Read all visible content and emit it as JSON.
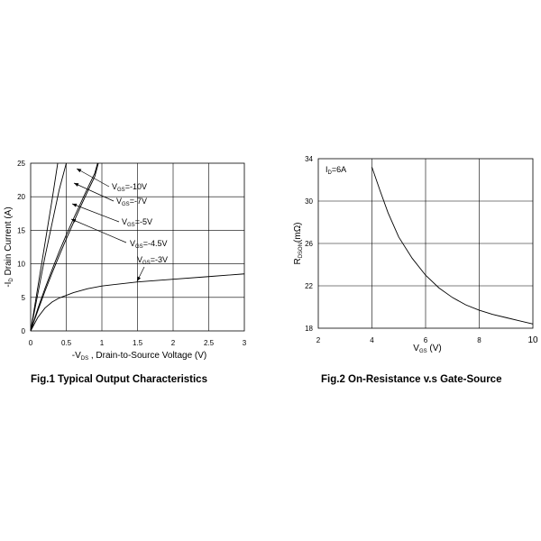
{
  "chart_data": [
    {
      "type": "line",
      "caption": "Fig.1 Typical Output Characteristics",
      "xlabel": {
        "prefix": "-V",
        "sub": "DS",
        "rest": " , Drain-to-Source Voltage (V)"
      },
      "ylabel": {
        "prefix": "-I",
        "sub": "D",
        "rest": " Drain Current (A)"
      },
      "xlim": [
        0,
        3
      ],
      "ylim": [
        0,
        25
      ],
      "xticks": [
        0,
        0.5,
        1,
        1.5,
        2,
        2.5,
        3
      ],
      "xtick_labels": [
        "0",
        "0.5",
        "1",
        "1.5",
        "2",
        "2.5",
        "3"
      ],
      "yticks": [
        0,
        5,
        10,
        15,
        20,
        25
      ],
      "ytick_labels": [
        "0",
        "5",
        "10",
        "15",
        "20",
        "25"
      ],
      "grid": true,
      "series": [
        {
          "name": {
            "prefix": "V",
            "sub": "GS",
            "rest": "=-10V"
          },
          "x": [
            0,
            0.1,
            0.2,
            0.3,
            0.38
          ],
          "y": [
            0,
            6.5,
            13,
            19.5,
            25
          ]
        },
        {
          "name": {
            "prefix": "V",
            "sub": "GS",
            "rest": "=-7V"
          },
          "x": [
            0,
            0.1,
            0.2,
            0.3,
            0.4,
            0.5
          ],
          "y": [
            0,
            5.5,
            11,
            16,
            21,
            25
          ]
        },
        {
          "name": {
            "prefix": "V",
            "sub": "GS",
            "rest": "=-5V"
          },
          "x": [
            0,
            0.1,
            0.2,
            0.3,
            0.4,
            0.5,
            0.6,
            0.7,
            0.8,
            0.9,
            0.94
          ],
          "y": [
            0,
            3.3,
            6.3,
            9.1,
            11.8,
            14.3,
            16.7,
            19.0,
            21.3,
            23.5,
            25
          ]
        },
        {
          "name": {
            "prefix": "V",
            "sub": "GS",
            "rest": "=-4.5V"
          },
          "x": [
            0,
            0.1,
            0.2,
            0.3,
            0.4,
            0.5,
            0.6,
            0.7,
            0.8,
            0.9,
            0.95
          ],
          "y": [
            0,
            3.0,
            5.9,
            8.6,
            11.2,
            13.7,
            16.1,
            18.5,
            20.8,
            23.0,
            25
          ]
        },
        {
          "name": {
            "prefix": "V",
            "sub": "GS",
            "rest": "=-3V"
          },
          "x": [
            0,
            0.1,
            0.2,
            0.3,
            0.4,
            0.5,
            0.6,
            0.8,
            1.0,
            1.5,
            2.0,
            2.5,
            3.0
          ],
          "y": [
            0,
            2.0,
            3.4,
            4.3,
            4.9,
            5.3,
            5.7,
            6.3,
            6.7,
            7.3,
            7.7,
            8.1,
            8.5
          ]
        }
      ]
    },
    {
      "type": "line",
      "caption": "Fig.2 On-Resistance v.s Gate-Source",
      "annotation": {
        "prefix": "I",
        "sub": "D",
        "rest": "=6A"
      },
      "xlabel": {
        "prefix": "V",
        "sub": "GS",
        "rest": " (V)"
      },
      "ylabel": {
        "prefix": "R",
        "sub": "DSON",
        "rest": "(mΩ)"
      },
      "xlim": [
        2,
        10
      ],
      "ylim": [
        18,
        34
      ],
      "xticks": [
        2,
        4,
        6,
        8,
        10
      ],
      "xtick_labels": [
        "2",
        "4",
        "6",
        "8",
        "10"
      ],
      "yticks": [
        18,
        22,
        26,
        30,
        34
      ],
      "ytick_labels": [
        "18",
        "22",
        "26",
        "30",
        "34"
      ],
      "grid": true,
      "series": [
        {
          "x": [
            4.0,
            4.3,
            4.6,
            5.0,
            5.5,
            6.0,
            6.5,
            7.0,
            7.5,
            8.0,
            8.5,
            9.0,
            9.5,
            10.0
          ],
          "y": [
            33.2,
            31.0,
            28.9,
            26.6,
            24.6,
            23.0,
            21.8,
            20.9,
            20.2,
            19.7,
            19.3,
            19.0,
            18.7,
            18.4
          ]
        }
      ]
    }
  ]
}
